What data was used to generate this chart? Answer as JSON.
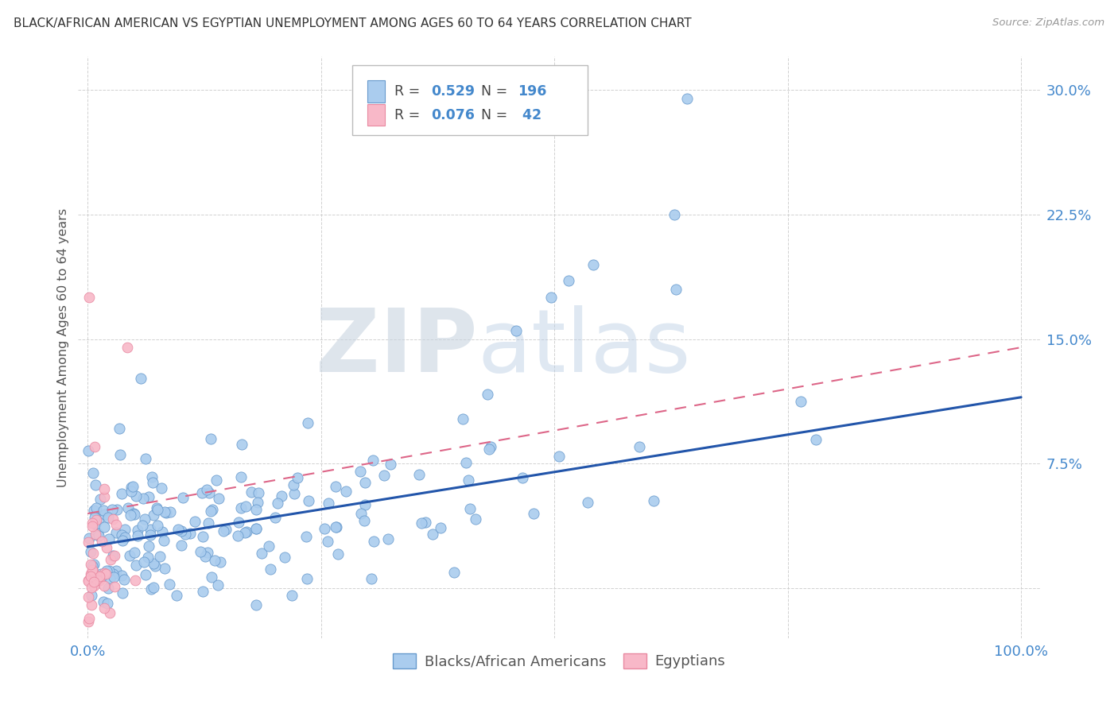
{
  "title": "BLACK/AFRICAN AMERICAN VS EGYPTIAN UNEMPLOYMENT AMONG AGES 60 TO 64 YEARS CORRELATION CHART",
  "source": "Source: ZipAtlas.com",
  "ylabel": "Unemployment Among Ages 60 to 64 years",
  "watermark_zip": "ZIP",
  "watermark_atlas": "atlas",
  "legend_R1": "0.529",
  "legend_N1": "196",
  "legend_R2": "0.076",
  "legend_N2": " 42",
  "xlim": [
    -0.01,
    1.02
  ],
  "ylim": [
    -0.03,
    0.32
  ],
  "xticks": [
    0.0,
    0.25,
    0.5,
    0.75,
    1.0
  ],
  "xtick_labels": [
    "0.0%",
    "",
    "",
    "",
    "100.0%"
  ],
  "yticks": [
    0.0,
    0.075,
    0.15,
    0.225,
    0.3
  ],
  "ytick_labels": [
    "",
    "7.5%",
    "15.0%",
    "22.5%",
    "30.0%"
  ],
  "color_blue_fill": "#aaccee",
  "color_blue_edge": "#6699cc",
  "color_pink_fill": "#f8b8c8",
  "color_pink_edge": "#e888a0",
  "color_blue_line": "#2255aa",
  "color_pink_line": "#dd6688",
  "color_title": "#333333",
  "color_axis_text": "#4488cc",
  "color_source": "#999999",
  "background": "#ffffff",
  "grid_color": "#cccccc",
  "seed": 42,
  "blue_line_start_y": 0.025,
  "blue_line_end_y": 0.115,
  "pink_line_start_y": 0.045,
  "pink_line_end_y": 0.145
}
